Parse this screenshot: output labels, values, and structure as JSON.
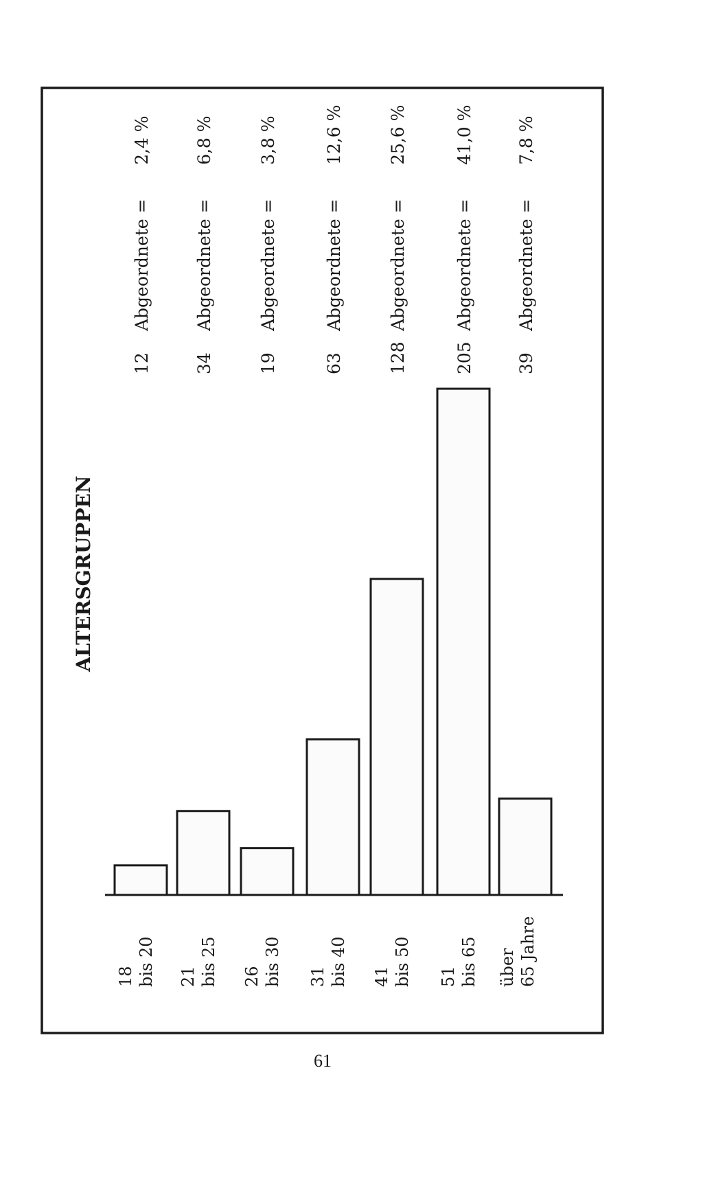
{
  "page_number": "61",
  "chart_data": {
    "type": "bar",
    "orientation": "vertical (page rotated 90° counter-clockwise)",
    "title": "ALTERSGRUPPEN",
    "categories": [
      [
        "18",
        "bis 20"
      ],
      [
        "21",
        "bis 25"
      ],
      [
        "26",
        "bis 30"
      ],
      [
        "31",
        "bis 40"
      ],
      [
        "41",
        "bis 50"
      ],
      [
        "51",
        "bis 65"
      ],
      [
        "über",
        "65 Jahre"
      ]
    ],
    "values": [
      12,
      34,
      19,
      63,
      128,
      205,
      39
    ],
    "value_unit": "Abgeordnete =",
    "percent_labels": [
      "2,4 %",
      "6,8 %",
      "3,8 %",
      "12,6 %",
      "25,6 %",
      "41,0 %",
      "7,8 %"
    ],
    "ylim": [
      0,
      205
    ],
    "grid": false,
    "legend": "none"
  }
}
